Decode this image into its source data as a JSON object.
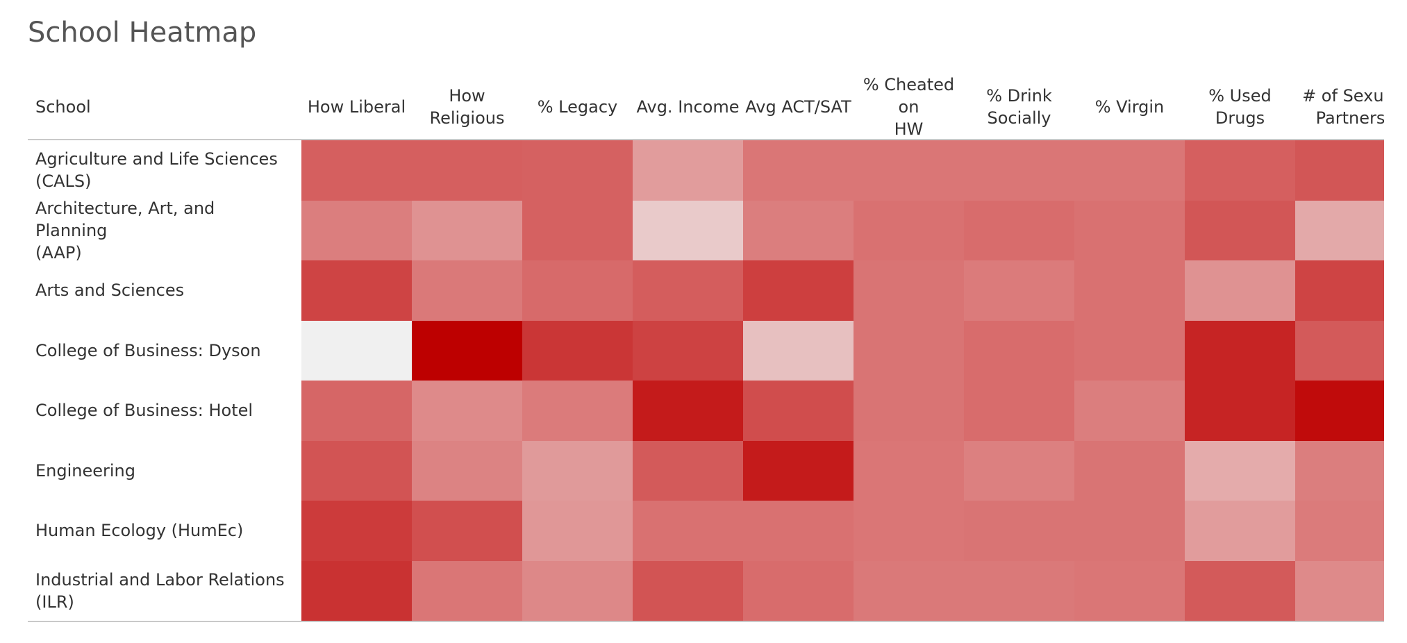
{
  "title": "School Heatmap",
  "chart_data": {
    "type": "heatmap",
    "title": "School Heatmap",
    "row_header": "School",
    "color_scale": {
      "low": "#f0f0f0",
      "mid": "#d97171",
      "high": "#bd0000"
    },
    "columns": [
      "How Liberal",
      "How\nReligious",
      "% Legacy",
      "Avg. Income",
      "Avg ACT/SAT",
      "% Cheated on\nHW",
      "% Drink\nSocially",
      "% Virgin",
      "% Used\nDrugs",
      "# of Sexual\nPartners"
    ],
    "rows": [
      "Agriculture and Life Sciences\n(CALS)",
      "Architecture, Art, and Planning\n(AAP)",
      "Arts and Sciences",
      "College of Business: Dyson",
      "College of Business: Hotel",
      "Engineering",
      "Human Ecology (HumEc)",
      "Industrial and Labor Relations\n(ILR)"
    ],
    "values": [
      [
        0.58,
        0.58,
        0.57,
        0.33,
        0.48,
        0.48,
        0.48,
        0.48,
        0.58,
        0.62
      ],
      [
        0.45,
        0.37,
        0.57,
        0.15,
        0.45,
        0.5,
        0.52,
        0.5,
        0.62,
        0.28
      ],
      [
        0.7,
        0.47,
        0.53,
        0.59,
        0.72,
        0.49,
        0.46,
        0.5,
        0.37,
        0.7
      ],
      [
        0.0,
        1.0,
        0.76,
        0.71,
        0.19,
        0.49,
        0.52,
        0.5,
        0.84,
        0.6
      ],
      [
        0.55,
        0.4,
        0.46,
        0.88,
        0.66,
        0.49,
        0.52,
        0.45,
        0.84,
        0.95
      ],
      [
        0.63,
        0.43,
        0.34,
        0.6,
        0.88,
        0.48,
        0.44,
        0.49,
        0.27,
        0.45
      ],
      [
        0.74,
        0.65,
        0.35,
        0.5,
        0.5,
        0.48,
        0.49,
        0.49,
        0.33,
        0.46
      ],
      [
        0.78,
        0.48,
        0.41,
        0.63,
        0.52,
        0.47,
        0.47,
        0.48,
        0.6,
        0.4
      ]
    ]
  }
}
